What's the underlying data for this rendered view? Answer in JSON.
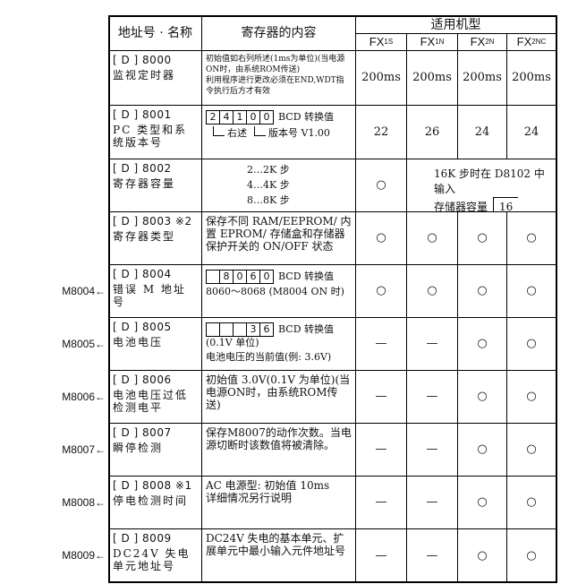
{
  "header": {
    "address": "地址号 · 名称",
    "content": "寄存器的内容",
    "models_title": "适用机型",
    "models": [
      {
        "main": "FX",
        "sub": "1S"
      },
      {
        "main": "FX",
        "sub": "1N"
      },
      {
        "main": "FX",
        "sub": "2N"
      },
      {
        "main": "FX",
        "sub": "2NC"
      }
    ]
  },
  "rows": [
    {
      "address": "[ D ] 8000",
      "name": "监视定时器",
      "content": {
        "lines": [
          "初始值如右列所述(1ms为单位)(当电源ON时，由系统ROM传送)",
          "利用程序进行更改必须在END,WDT指令执行后方才有效"
        ]
      },
      "cells": [
        "200ms",
        "200ms",
        "200ms",
        "200ms"
      ]
    },
    {
      "address": "[ D ] 8001",
      "name": "PC 类型和系统版本号",
      "content": {
        "digits": [
          "2",
          "4",
          "1",
          "0",
          "0"
        ],
        "label": "BCD 转换值",
        "pointers": [
          "右述",
          "版本号 V1.00"
        ]
      },
      "cells": [
        "22",
        "26",
        "24",
        "24"
      ]
    },
    {
      "address": "[ D ] 8002",
      "name": "寄存器容量",
      "content": {
        "lines": [
          "2…2K 步",
          "4…4K 步",
          "8…8K 步"
        ]
      },
      "cells": [
        "○"
      ],
      "model_note": {
        "lines": [
          "16K 步时在 D8102 中输入",
          "存储器容量"
        ],
        "value": "16"
      }
    },
    {
      "address": "[ D ] 8003",
      "note": "※2",
      "name": "寄存器类型",
      "content": {
        "lines": [
          "保存不同 RAM/EEPROM/ 内置 EPROM/ 存储盒和存储器保护开关的 ON/OFF 状态"
        ]
      },
      "cells": [
        "○",
        "○",
        "○",
        "○"
      ]
    },
    {
      "address": "[ D ] 8004",
      "name": "错误 M 地址号",
      "content": {
        "digits": [
          null,
          "8",
          "0",
          "6",
          "0"
        ],
        "label": "BCD 转换值",
        "lines": [
          "8060～8068 (M8004 ON 时)"
        ]
      },
      "cells": [
        "○",
        "○",
        "○",
        "○"
      ],
      "side": "M8004←"
    },
    {
      "address": "[ D ] 8005",
      "name": "电池电压",
      "content": {
        "digits": [
          null,
          null,
          null,
          "3",
          "6"
        ],
        "label": "BCD 转换值 (0.1V 单位)",
        "lines": [
          "电池电压的当前值(例: 3.6V)"
        ]
      },
      "cells": [
        "—",
        "—",
        "○",
        "○"
      ],
      "side": "M8005←"
    },
    {
      "address": "[ D ] 8006",
      "name": "电池电压过低检测电平",
      "content": {
        "lines": [
          "初始值 3.0V(0.1V 为单位)(当电源ON时，由系统ROM传送)"
        ]
      },
      "cells": [
        "—",
        "—",
        "○",
        "○"
      ],
      "side": "M8006←"
    },
    {
      "address": "[ D ] 8007",
      "name": "瞬停检测",
      "content": {
        "lines": [
          "保存M8007的动作次数。当电源切断时该数值将被清除。"
        ]
      },
      "cells": [
        "—",
        "—",
        "○",
        "○"
      ],
      "side": "M8007←"
    },
    {
      "address": "[ D ] 8008",
      "note": "※1",
      "name": "停电检测时间",
      "content": {
        "lines": [
          "AC 电源型: 初始值 10ms",
          "详细情况另行说明"
        ]
      },
      "cells": [
        "—",
        "—",
        "○",
        "○"
      ],
      "side": "M8008←"
    },
    {
      "address": "[ D ] 8009",
      "name": "DC24V 失电单元地址号",
      "content": {
        "lines": [
          "DC24V 失电的基本单元、扩展单元中最小输入元件地址号"
        ]
      },
      "cells": [
        "—",
        "—",
        "○",
        "○"
      ],
      "side": "M8009←"
    }
  ]
}
